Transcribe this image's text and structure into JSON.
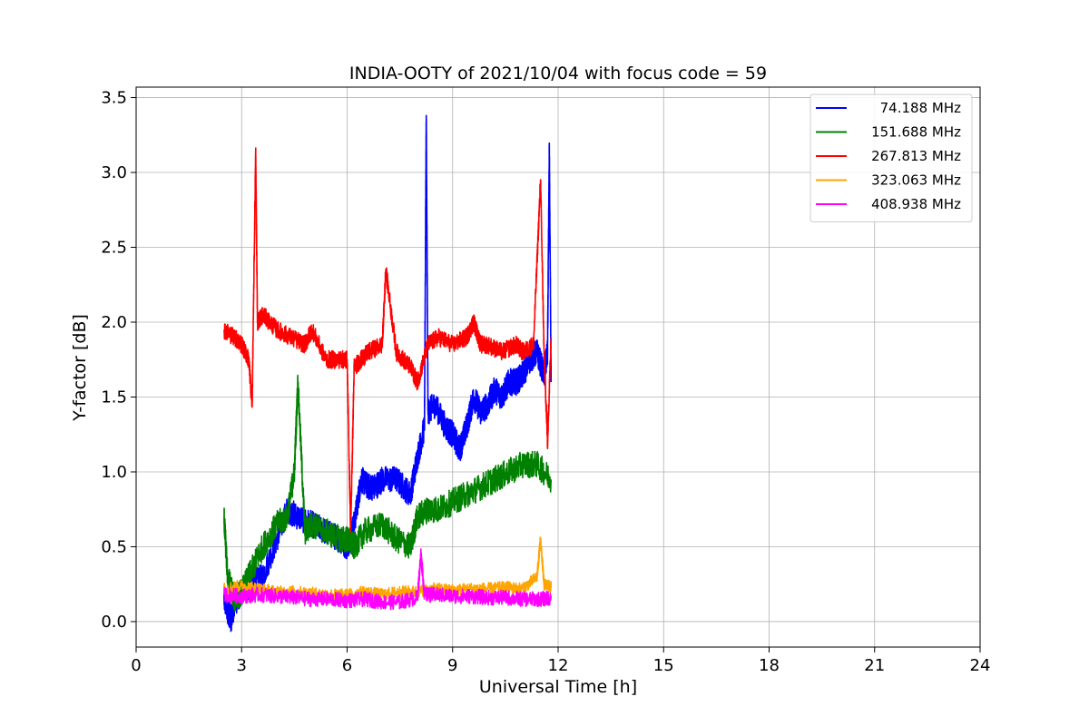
{
  "chart_data": {
    "type": "line",
    "title": "INDIA-OOTY of 2021/10/04 with focus code = 59",
    "xlabel": "Universal Time [h]",
    "ylabel": "Y-factor [dB]",
    "xlim": [
      0,
      24
    ],
    "ylim": [
      -0.17,
      3.57
    ],
    "xticks": [
      "0",
      "3",
      "6",
      "9",
      "12",
      "15",
      "18",
      "21",
      "24"
    ],
    "yticks": [
      "0.0",
      "0.5",
      "1.0",
      "1.5",
      "2.0",
      "2.5",
      "3.0",
      "3.5"
    ],
    "grid": true,
    "legend_position": "top-right",
    "series": [
      {
        "name": "74.188 MHz",
        "color": "#0000ff",
        "x": [
          2.5,
          2.6,
          2.7,
          2.8,
          3.0,
          3.3,
          3.6,
          4.0,
          4.3,
          4.6,
          5.0,
          5.4,
          5.8,
          6.0,
          6.2,
          6.4,
          6.6,
          6.8,
          7.0,
          7.4,
          7.8,
          8.0,
          8.2,
          8.25,
          8.3,
          8.5,
          8.8,
          9.0,
          9.2,
          9.4,
          9.6,
          9.8,
          10.0,
          10.2,
          10.4,
          10.6,
          10.8,
          11.0,
          11.2,
          11.4,
          11.6,
          11.7,
          11.75,
          11.8
        ],
        "y": [
          0.15,
          0.08,
          0.02,
          0.12,
          0.2,
          0.25,
          0.3,
          0.55,
          0.75,
          0.7,
          0.65,
          0.6,
          0.55,
          0.5,
          0.65,
          0.95,
          0.9,
          0.9,
          0.95,
          0.95,
          0.85,
          1.1,
          1.3,
          3.38,
          1.4,
          1.45,
          1.3,
          1.25,
          1.15,
          1.3,
          1.5,
          1.4,
          1.45,
          1.55,
          1.5,
          1.6,
          1.6,
          1.65,
          1.75,
          1.8,
          1.65,
          1.8,
          3.15,
          1.6
        ]
      },
      {
        "name": "151.688 MHz",
        "color": "#008000",
        "x": [
          2.5,
          2.6,
          2.8,
          3.0,
          3.3,
          3.6,
          4.0,
          4.3,
          4.5,
          4.6,
          4.8,
          5.0,
          5.4,
          5.8,
          6.0,
          6.2,
          6.5,
          7.0,
          7.4,
          7.8,
          8.0,
          8.3,
          8.6,
          9.0,
          9.4,
          9.8,
          10.2,
          10.6,
          11.0,
          11.4,
          11.8
        ],
        "y": [
          0.7,
          0.3,
          0.15,
          0.2,
          0.35,
          0.5,
          0.65,
          0.7,
          1.0,
          1.6,
          0.6,
          0.65,
          0.6,
          0.55,
          0.55,
          0.5,
          0.6,
          0.65,
          0.55,
          0.5,
          0.7,
          0.75,
          0.75,
          0.8,
          0.85,
          0.9,
          0.95,
          1.0,
          1.05,
          1.05,
          0.95
        ]
      },
      {
        "name": "267.813 MHz",
        "color": "#ff0000",
        "x": [
          2.5,
          2.8,
          3.0,
          3.2,
          3.3,
          3.4,
          3.45,
          3.6,
          4.0,
          4.4,
          4.8,
          5.0,
          5.4,
          5.8,
          6.0,
          6.1,
          6.2,
          6.4,
          6.6,
          7.0,
          7.1,
          7.4,
          7.8,
          8.0,
          8.3,
          8.6,
          9.0,
          9.4,
          9.6,
          9.8,
          10.0,
          10.4,
          10.8,
          11.0,
          11.3,
          11.5,
          11.6,
          11.7,
          11.8
        ],
        "y": [
          1.95,
          1.9,
          1.85,
          1.75,
          1.45,
          3.15,
          2.0,
          2.05,
          1.95,
          1.9,
          1.85,
          1.95,
          1.75,
          1.75,
          1.75,
          0.6,
          1.7,
          1.75,
          1.8,
          1.85,
          2.35,
          1.8,
          1.7,
          1.6,
          1.85,
          1.9,
          1.85,
          1.9,
          2.0,
          1.85,
          1.85,
          1.8,
          1.85,
          1.8,
          1.85,
          2.95,
          1.8,
          1.2,
          1.9
        ]
      },
      {
        "name": "323.063 MHz",
        "color": "#ffa500",
        "x": [
          2.5,
          3.0,
          3.5,
          4.0,
          4.5,
          5.0,
          5.5,
          6.0,
          6.5,
          7.0,
          7.5,
          8.0,
          8.5,
          9.0,
          9.5,
          10.0,
          10.5,
          11.0,
          11.4,
          11.5,
          11.6,
          11.8
        ],
        "y": [
          0.22,
          0.24,
          0.22,
          0.2,
          0.2,
          0.19,
          0.18,
          0.18,
          0.2,
          0.18,
          0.2,
          0.2,
          0.22,
          0.21,
          0.22,
          0.22,
          0.23,
          0.22,
          0.3,
          0.55,
          0.25,
          0.23
        ]
      },
      {
        "name": "408.938 MHz",
        "color": "#ff00ff",
        "x": [
          2.5,
          3.0,
          3.5,
          4.0,
          4.5,
          5.0,
          5.5,
          6.0,
          6.5,
          7.0,
          7.5,
          8.0,
          8.1,
          8.2,
          8.5,
          9.0,
          9.5,
          10.0,
          10.5,
          11.0,
          11.5,
          11.8
        ],
        "y": [
          0.18,
          0.17,
          0.18,
          0.17,
          0.16,
          0.15,
          0.15,
          0.14,
          0.15,
          0.13,
          0.13,
          0.16,
          0.45,
          0.18,
          0.18,
          0.17,
          0.17,
          0.16,
          0.16,
          0.15,
          0.15,
          0.16
        ]
      }
    ]
  }
}
